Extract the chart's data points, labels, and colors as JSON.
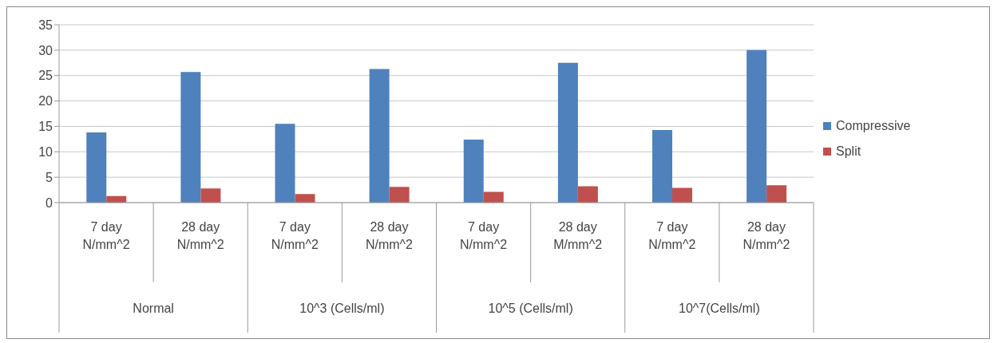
{
  "chart_data": {
    "type": "bar",
    "categories": [
      "7 day N/mm^2",
      "28 day N/mm^2",
      "7 day N/mm^2",
      "28 day N/mm^2",
      "7 day N/mm^2",
      "28 day M/mm^2",
      "7 day N/mm^2",
      "28 day N/mm^2"
    ],
    "series": [
      {
        "name": "Compressive",
        "color": "#4f81bd",
        "values": [
          13.8,
          25.7,
          15.5,
          26.3,
          12.4,
          27.5,
          14.3,
          30.0
        ]
      },
      {
        "name": "Split",
        "color": "#c0504d",
        "values": [
          1.3,
          2.8,
          1.7,
          3.1,
          2.1,
          3.2,
          2.9,
          3.4
        ]
      }
    ],
    "annotations": [
      "Normal",
      "10^3 (Cells/ml)",
      "10^5 (Cells/ml)",
      "10^7(Cells/ml)"
    ],
    "ylim": [
      0,
      35
    ],
    "yticks": [
      0,
      5,
      10,
      15,
      20,
      25,
      30,
      35
    ],
    "grid": "y",
    "legend": "right"
  }
}
